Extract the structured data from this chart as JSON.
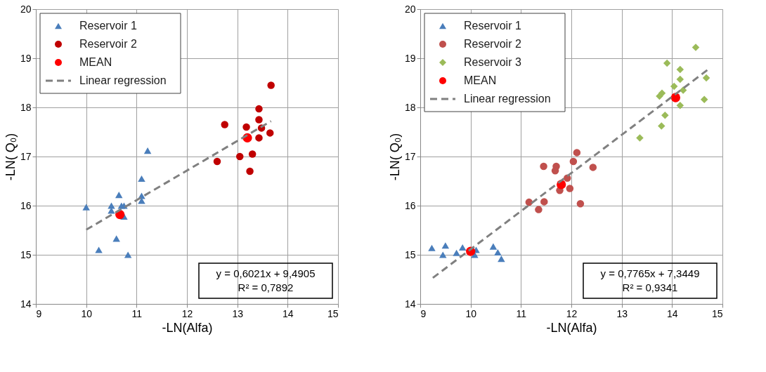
{
  "chart_data": [
    {
      "type": "scatter",
      "xlabel": "-LN(Alfa)",
      "ylabel": "-LN( Q₀)",
      "xlim": [
        9,
        15
      ],
      "ylim": [
        14,
        20
      ],
      "xticks": [
        9,
        10,
        11,
        12,
        13,
        14,
        15
      ],
      "yticks": [
        14,
        15,
        16,
        17,
        18,
        19,
        20
      ],
      "grid": true,
      "legend": "top left",
      "annotations": [
        "y = 0,6021x + 9,4905",
        "R² = 0,7892"
      ],
      "series": [
        {
          "name": "Reservoir 1",
          "color": "#4a7ebb",
          "marker": "triangle",
          "x": [
            10.0,
            10.25,
            10.5,
            10.5,
            10.6,
            10.65,
            10.7,
            10.75,
            10.75,
            10.83,
            11.1,
            11.1,
            11.1,
            11.22
          ],
          "values": [
            15.97,
            15.1,
            16.0,
            15.9,
            15.33,
            16.22,
            16.0,
            16.0,
            15.78,
            15.0,
            16.55,
            16.2,
            16.1,
            17.12
          ]
        },
        {
          "name": "Reservoir 2",
          "color": "#c00000",
          "marker": "circle",
          "x": [
            12.6,
            12.75,
            13.05,
            13.18,
            13.2,
            13.25,
            13.3,
            13.43,
            13.43,
            13.43,
            13.48,
            13.65,
            13.67
          ],
          "values": [
            16.9,
            17.65,
            17.0,
            17.6,
            null,
            16.7,
            17.05,
            17.97,
            17.75,
            17.38,
            17.58,
            17.48,
            18.45
          ]
        },
        {
          "name": "MEAN",
          "color": "#ff0000",
          "marker": "circle",
          "x": [
            10.67,
            13.2
          ],
          "values": [
            15.82,
            17.38
          ]
        },
        {
          "name": "Linear regression",
          "type": "line",
          "color": "#808080",
          "line_style": "dashed",
          "x": [
            10.0,
            13.67
          ],
          "values": [
            15.51,
            17.72
          ]
        }
      ]
    },
    {
      "type": "scatter",
      "xlabel": "-LN(Alfa)",
      "ylabel": "-LN( Q₀)",
      "xlim": [
        9,
        15
      ],
      "ylim": [
        14,
        20
      ],
      "xticks": [
        9,
        10,
        11,
        12,
        13,
        14,
        15
      ],
      "yticks": [
        14,
        15,
        16,
        17,
        18,
        19,
        20
      ],
      "grid": true,
      "legend": "top left",
      "annotations": [
        "y = 0,7765x + 7,3449",
        "R² = 0,9341"
      ],
      "series": [
        {
          "name": "Reservoir 1",
          "color": "#4a7ebb",
          "marker": "triangle",
          "x": [
            9.23,
            9.5,
            9.45,
            9.72,
            9.84,
            10.11,
            10.08,
            10.45,
            10.54,
            10.61
          ],
          "values": [
            15.14,
            15.19,
            15.0,
            15.04,
            15.15,
            15.1,
            15.0,
            15.17,
            15.05,
            14.92
          ]
        },
        {
          "name": "Reservoir 2",
          "color": "#c0504d",
          "marker": "circle",
          "x": [
            12.11,
            12.04,
            12.43,
            11.45,
            11.7,
            11.68,
            11.92,
            11.97,
            11.77,
            11.46,
            11.16,
            11.35,
            12.18
          ],
          "values": [
            17.08,
            16.9,
            16.78,
            16.8,
            16.8,
            16.71,
            16.56,
            16.35,
            16.31,
            16.08,
            16.07,
            15.92,
            16.04
          ]
        },
        {
          "name": "Reservoir 3",
          "color": "#9bbb59",
          "marker": "diamond",
          "x": [
            13.9,
            14.16,
            14.16,
            14.68,
            14.04,
            14.22,
            13.8,
            13.75,
            14.64,
            14.16,
            13.86,
            13.79,
            13.36,
            14.47
          ],
          "values": [
            18.9,
            18.77,
            18.57,
            18.6,
            18.43,
            18.35,
            18.29,
            18.23,
            18.16,
            18.04,
            17.84,
            17.62,
            17.38,
            19.22
          ]
        },
        {
          "name": "MEAN",
          "color": "#ff0000",
          "marker": "circle",
          "x": [
            10.0,
            11.8,
            14.07
          ],
          "values": [
            15.07,
            16.43,
            18.2
          ]
        },
        {
          "name": "Linear regression",
          "type": "line",
          "color": "#808080",
          "line_style": "dashed",
          "x": [
            9.25,
            14.7
          ],
          "values": [
            14.53,
            18.76
          ]
        }
      ]
    }
  ]
}
